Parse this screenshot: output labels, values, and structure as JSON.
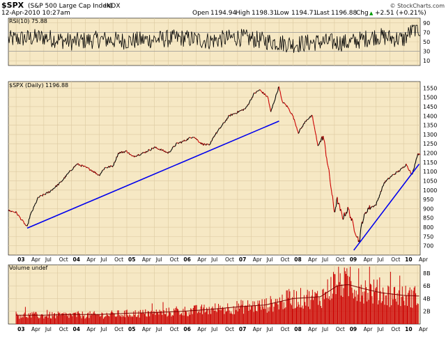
{
  "header": {
    "symbol": "$SPX",
    "name": "(S&P 500 Large Cap Index)",
    "exchange": "INDX",
    "date": "12-Apr-2010 10:27am",
    "copyright": "© StockCharts.com",
    "open_label": "Open",
    "open": "1194.94",
    "high_label": "High",
    "high": "1198.31",
    "low_label": "Low",
    "low": "1194.71",
    "last_label": "Last",
    "last": "1196.88",
    "chg_label": "Chg",
    "chg": "+2.51 (+0.21%)",
    "chg_arrow": "▲"
  },
  "colors": {
    "panel_bg": "#f6e8c4",
    "grid": "#dcc9a0",
    "price": "#000000",
    "price_down": "#cc0000",
    "trendline": "#0000ee",
    "volume": "#cc0000",
    "volume_ma": "#cc0000",
    "rsi_line": "#000000"
  },
  "x_axis": {
    "labels": [
      {
        "t": 0.0,
        "text": "03",
        "bold": true
      },
      {
        "t": 0.25,
        "text": "Apr"
      },
      {
        "t": 0.5,
        "text": "Jul"
      },
      {
        "t": 0.75,
        "text": "Oct"
      },
      {
        "t": 1.0,
        "text": "04",
        "bold": true
      },
      {
        "t": 1.25,
        "text": "Apr"
      },
      {
        "t": 1.5,
        "text": "Jul"
      },
      {
        "t": 1.75,
        "text": "Oct"
      },
      {
        "t": 2.0,
        "text": "05",
        "bold": true
      },
      {
        "t": 2.25,
        "text": "Apr"
      },
      {
        "t": 2.5,
        "text": "Jul"
      },
      {
        "t": 2.75,
        "text": "Oct"
      },
      {
        "t": 3.0,
        "text": "06",
        "bold": true
      },
      {
        "t": 3.25,
        "text": "Apr"
      },
      {
        "t": 3.5,
        "text": "Jul"
      },
      {
        "t": 3.75,
        "text": "Oct"
      },
      {
        "t": 4.0,
        "text": "07",
        "bold": true
      },
      {
        "t": 4.25,
        "text": "Apr"
      },
      {
        "t": 4.5,
        "text": "Jul"
      },
      {
        "t": 4.75,
        "text": "Oct"
      },
      {
        "t": 5.0,
        "text": "08",
        "bold": true
      },
      {
        "t": 5.25,
        "text": "Apr"
      },
      {
        "t": 5.5,
        "text": "Jul"
      },
      {
        "t": 5.75,
        "text": "Oct"
      },
      {
        "t": 6.0,
        "text": "09",
        "bold": true
      },
      {
        "t": 6.25,
        "text": "Apr"
      },
      {
        "t": 6.5,
        "text": "Jul"
      },
      {
        "t": 6.75,
        "text": "Oct"
      },
      {
        "t": 7.0,
        "text": "10",
        "bold": true
      },
      {
        "t": 7.25,
        "text": "Apr"
      }
    ],
    "range": [
      -0.14,
      7.3
    ]
  },
  "chart_data": [
    {
      "type": "line",
      "panel": "rsi",
      "label": "RSI(10)",
      "last_value": "75.88",
      "y_ticks": [
        10,
        30,
        50,
        70,
        90
      ],
      "y_range": [
        0,
        100
      ],
      "reference_lines": [
        30,
        70
      ],
      "x": [
        -0.14,
        0.5,
        1.0,
        1.5,
        2.0,
        2.5,
        3.0,
        3.5,
        4.0,
        4.5,
        5.0,
        5.5,
        6.0,
        6.5,
        7.0,
        7.2,
        7.28
      ],
      "y": [
        55,
        60,
        50,
        55,
        52,
        55,
        58,
        52,
        60,
        52,
        45,
        50,
        48,
        62,
        55,
        80,
        75.88
      ],
      "note_series_oscillates": "oscillator between roughly 30 and 80 throughout"
    },
    {
      "type": "line",
      "panel": "price",
      "label": "$SPX (Daily)",
      "last_value": "1196.88",
      "y_ticks": [
        700,
        750,
        800,
        850,
        900,
        950,
        1000,
        1050,
        1100,
        1150,
        1200,
        1250,
        1300,
        1350,
        1400,
        1450,
        1500,
        1550
      ],
      "y_range": [
        650,
        1585
      ],
      "x": [
        -0.14,
        0.0,
        0.1,
        0.2,
        0.25,
        0.4,
        0.6,
        0.8,
        1.0,
        1.1,
        1.2,
        1.35,
        1.5,
        1.6,
        1.75,
        1.85,
        2.0,
        2.1,
        2.3,
        2.5,
        2.6,
        2.75,
        2.9,
        3.0,
        3.2,
        3.35,
        3.5,
        3.55,
        3.7,
        3.85,
        4.0,
        4.15,
        4.3,
        4.4,
        4.55,
        4.6,
        4.75,
        4.8,
        4.9,
        5.0,
        5.1,
        5.25,
        5.35,
        5.45,
        5.55,
        5.65,
        5.75,
        5.8,
        5.9,
        6.0,
        6.1,
        6.2,
        6.25,
        6.35,
        6.5,
        6.65,
        6.8,
        6.95,
        7.05,
        7.15,
        7.25,
        7.28
      ],
      "y": [
        890,
        880,
        840,
        800,
        860,
        960,
        990,
        1040,
        1110,
        1140,
        1130,
        1110,
        1080,
        1120,
        1130,
        1200,
        1210,
        1180,
        1200,
        1230,
        1220,
        1200,
        1250,
        1260,
        1290,
        1250,
        1240,
        1280,
        1340,
        1400,
        1420,
        1440,
        1520,
        1540,
        1500,
        1420,
        1560,
        1480,
        1450,
        1400,
        1310,
        1380,
        1400,
        1240,
        1290,
        1100,
        880,
        950,
        850,
        900,
        800,
        720,
        830,
        900,
        920,
        1040,
        1080,
        1110,
        1140,
        1080,
        1190,
        1196.88
      ],
      "trendlines": [
        {
          "x1": 0.2,
          "y1": 795,
          "x2": 4.75,
          "y2": 1372
        },
        {
          "x1": 6.1,
          "y1": 676,
          "x2": 7.28,
          "y2": 1140
        }
      ]
    },
    {
      "type": "bar",
      "panel": "volume",
      "label": "Volume undef",
      "y_ticks": [
        {
          "v": 2,
          "text": "2B"
        },
        {
          "v": 4,
          "text": "4B"
        },
        {
          "v": 6,
          "text": "6B"
        },
        {
          "v": 8,
          "text": "8B"
        }
      ],
      "y_range": [
        0,
        9.3
      ],
      "x": [
        0.0,
        0.5,
        1.0,
        1.5,
        2.0,
        2.5,
        3.0,
        3.5,
        4.0,
        4.5,
        5.0,
        5.5,
        5.8,
        6.0,
        6.3,
        6.6,
        7.0,
        7.28
      ],
      "values": [
        1.5,
        1.4,
        1.5,
        1.5,
        1.7,
        1.8,
        2.1,
        2.4,
        2.8,
        3.1,
        4.2,
        4.3,
        7.2,
        6.5,
        5.8,
        5.0,
        4.6,
        4.5
      ],
      "ma": [
        1.4,
        1.4,
        1.5,
        1.5,
        1.7,
        1.8,
        2.0,
        2.3,
        2.7,
        3.0,
        4.0,
        4.3,
        6.0,
        6.2,
        5.5,
        4.9,
        4.5,
        4.4
      ]
    }
  ]
}
